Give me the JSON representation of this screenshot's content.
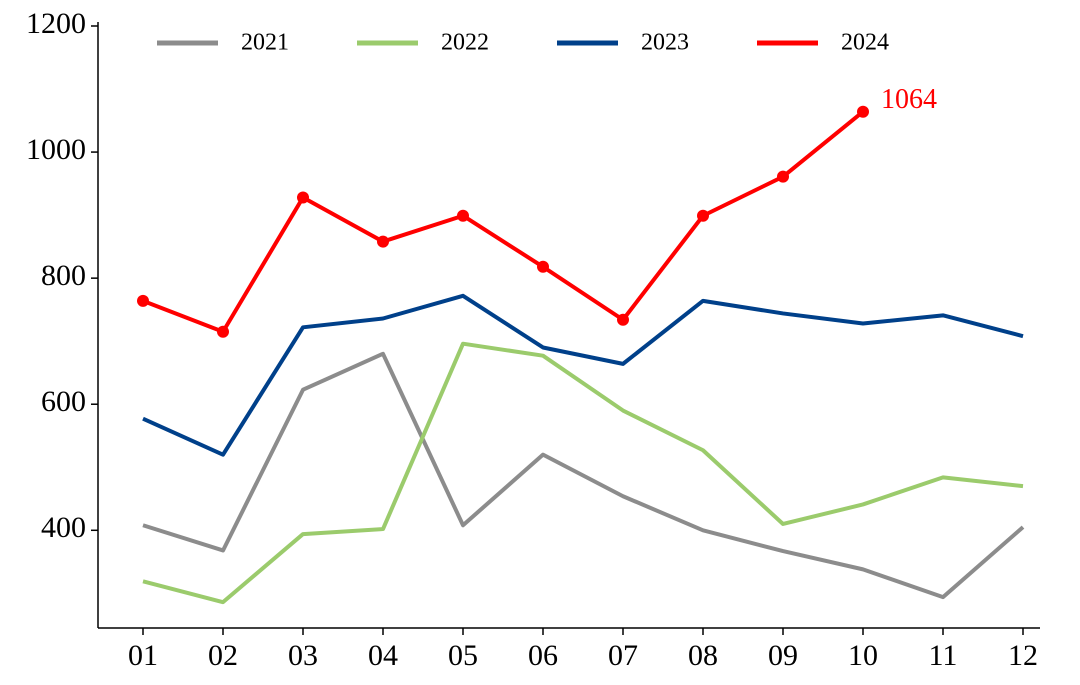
{
  "chart_data": {
    "type": "line",
    "categories": [
      "01",
      "02",
      "03",
      "04",
      "05",
      "06",
      "07",
      "08",
      "09",
      "10",
      "11",
      "12"
    ],
    "series": [
      {
        "name": "2021",
        "color": "#8c8c8c",
        "values": [
          408,
          368,
          623,
          680,
          408,
          520,
          454,
          400,
          367,
          338,
          294,
          405
        ]
      },
      {
        "name": "2022",
        "color": "#9bcb6c",
        "values": [
          319,
          286,
          394,
          402,
          696,
          677,
          590,
          527,
          410,
          441,
          484,
          470
        ]
      },
      {
        "name": "2023",
        "color": "#00408a",
        "values": [
          577,
          520,
          722,
          736,
          772,
          690,
          664,
          764,
          744,
          728,
          741,
          708
        ]
      },
      {
        "name": "2024",
        "color": "#ff0000",
        "marker": "o",
        "values": [
          764,
          715,
          928,
          858,
          899,
          818,
          734,
          899,
          961,
          1064,
          null,
          null
        ]
      }
    ],
    "ylim": [
      245,
      1200
    ],
    "yticks": [
      400,
      600,
      800,
      1000,
      1200
    ],
    "grid": false,
    "legend": "top"
  }
}
